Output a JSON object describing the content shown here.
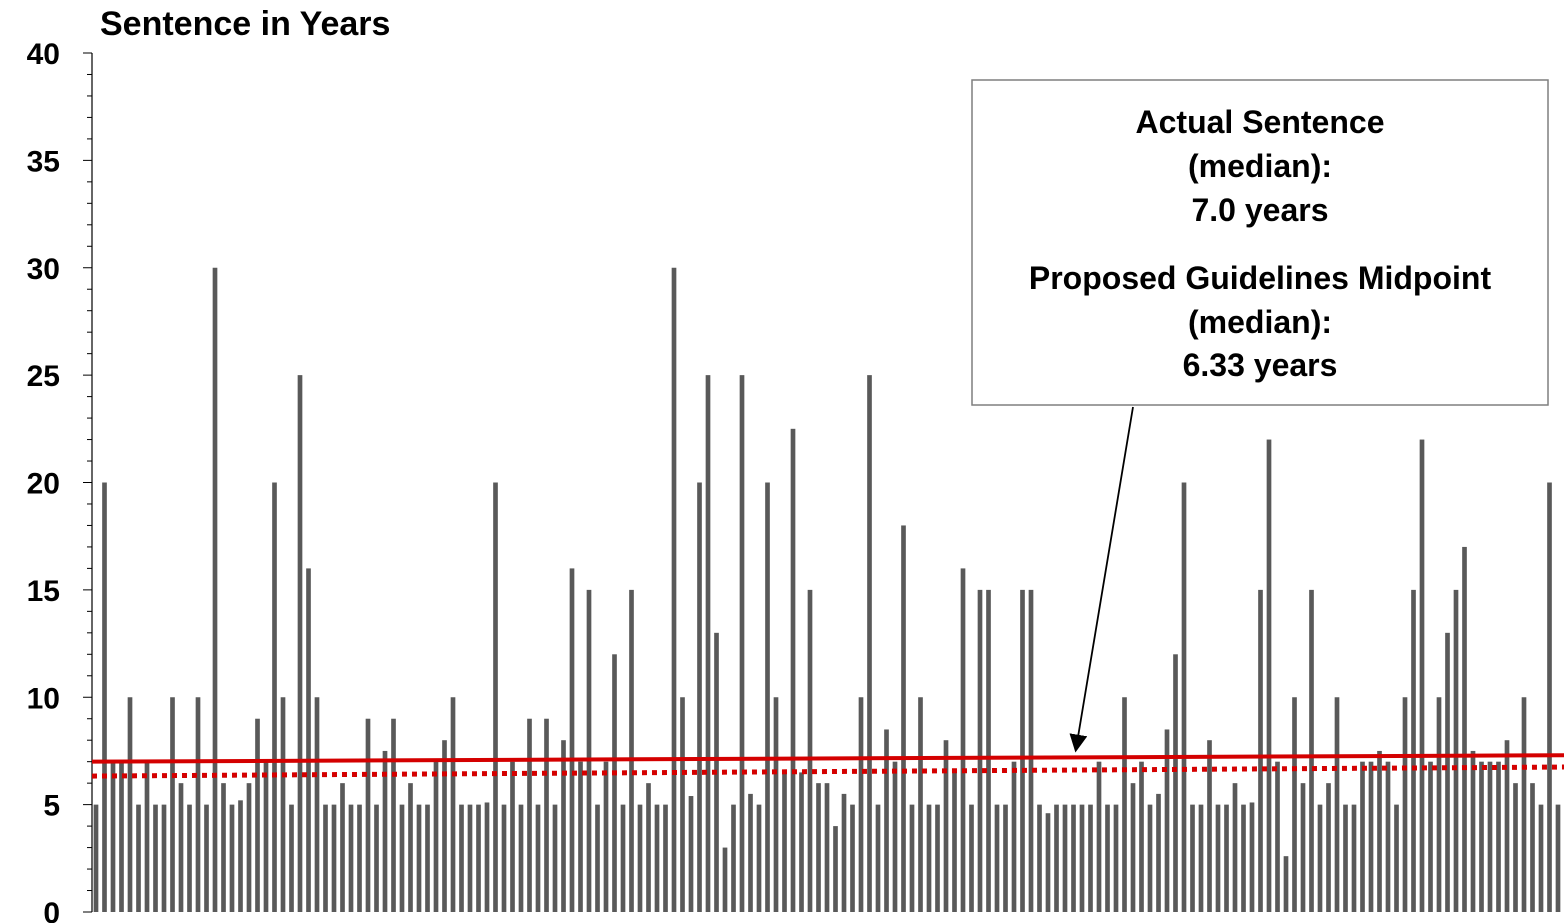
{
  "chart_data": {
    "type": "bar",
    "title": "",
    "ylabel": "Sentence in Years",
    "xlabel": "",
    "ylim": [
      0,
      40
    ],
    "yticks": [
      0,
      5,
      10,
      15,
      20,
      25,
      30,
      35,
      40
    ],
    "y_minor_step": 1,
    "grid": false,
    "bar_color": "#595959",
    "values": [
      5,
      20,
      7,
      7,
      10,
      5,
      7,
      5,
      5,
      10,
      6,
      5,
      10,
      5,
      30,
      6,
      5,
      5.2,
      6,
      9,
      7,
      20,
      10,
      5,
      25,
      16,
      10,
      5,
      5,
      6,
      5,
      5,
      9,
      5,
      7.5,
      9,
      5,
      6,
      5,
      5,
      7,
      8,
      10,
      5,
      5,
      5,
      5.1,
      20,
      5,
      7,
      5,
      9,
      5,
      9,
      5,
      8,
      16,
      7,
      15,
      5,
      7,
      12,
      5,
      15,
      5,
      6,
      5,
      5,
      30,
      10,
      5.4,
      20,
      25,
      13,
      3,
      5,
      25,
      5.5,
      5,
      20,
      10,
      6.5,
      22.5,
      6.5,
      15,
      6,
      6,
      4,
      5.5,
      5,
      10,
      25,
      5,
      8.5,
      7,
      18,
      5,
      10,
      5,
      5,
      8,
      6.5,
      16,
      5,
      15,
      15,
      5,
      5,
      7,
      15,
      15,
      5,
      4.6,
      5,
      5,
      5,
      5,
      5,
      7,
      5,
      5,
      10,
      6,
      7,
      5,
      5.5,
      8.5,
      12,
      20,
      5,
      5,
      8,
      5,
      5,
      6,
      5,
      5.1,
      15,
      22,
      7,
      2.6,
      10,
      6,
      15,
      5,
      6,
      10,
      5,
      5,
      7,
      7,
      7.5,
      7,
      5,
      10,
      15,
      22,
      7,
      10,
      13,
      15,
      17,
      7.5,
      7,
      7,
      7,
      8,
      6,
      10,
      6,
      5,
      20,
      5
    ],
    "series": [
      {
        "name": "Actual Sentence (median)",
        "value": 7.0,
        "color": "#d40000",
        "style": "solid",
        "slope_end": 7.3
      },
      {
        "name": "Proposed Guidelines Midpoint (median)",
        "value": 6.33,
        "color": "#d40000",
        "style": "dotted",
        "slope_end": 6.75
      }
    ],
    "annotation": {
      "lines": [
        "Actual Sentence",
        "(median):",
        "7.0 years",
        "Proposed Guidelines Midpoint",
        "(median):",
        "6.33 years"
      ],
      "arrow": true
    }
  }
}
